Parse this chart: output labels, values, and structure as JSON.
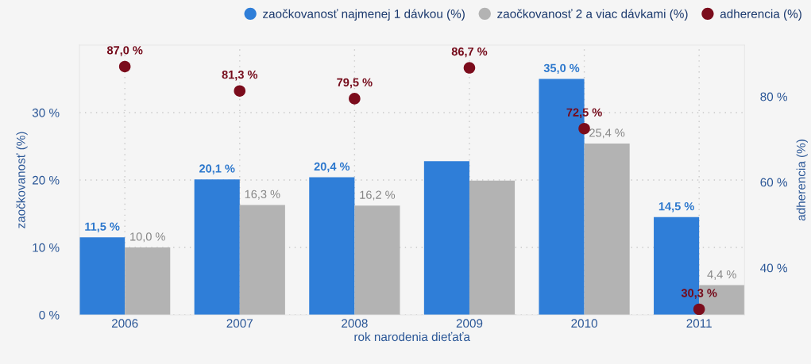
{
  "chart_data": {
    "type": "bar",
    "categories": [
      "2006",
      "2007",
      "2008",
      "2009",
      "2010",
      "2011"
    ],
    "xlabel": "rok narodenia dieťaťa",
    "ylabel": "zaočkovanosť (%)",
    "y2label": "adherencia (%)",
    "ylim": [
      0,
      40
    ],
    "yticks": [
      {
        "value": 0,
        "label": "0 %"
      },
      {
        "value": 10,
        "label": "10 %"
      },
      {
        "value": 20,
        "label": "20 %"
      },
      {
        "value": 30,
        "label": "30 %"
      }
    ],
    "y2lim": [
      29,
      92
    ],
    "y2ticks": [
      {
        "value": 40,
        "label": "40 %"
      },
      {
        "value": 60,
        "label": "60 %"
      },
      {
        "value": 80,
        "label": "80 %"
      }
    ],
    "grid": true,
    "legend": "top right",
    "series": [
      {
        "name": "zaočkovanosť najmenej 1 dávkou (%)",
        "color": "#2f7ed8",
        "values": [
          11.5,
          20.1,
          20.4,
          22.8,
          35.0,
          14.5
        ],
        "value_labels": [
          "11,5 %",
          "20,1 %",
          "20,4 %",
          null,
          "35,0 %",
          "14,5 %"
        ]
      },
      {
        "name": "zaočkovanosť 2 a viac dávkami (%)",
        "color": "#b3b3b3",
        "values": [
          10.0,
          16.3,
          16.2,
          19.9,
          25.4,
          4.4
        ],
        "value_labels": [
          "10,0 %",
          "16,3 %",
          "16,2 %",
          null,
          "25,4 %",
          "4,4 %"
        ]
      },
      {
        "name": "adherencia (%)",
        "type": "scatter",
        "axis": "y2",
        "color": "#7b0c1c",
        "marker": "circle",
        "values": [
          87.0,
          81.3,
          79.5,
          86.7,
          72.5,
          30.3
        ],
        "value_labels": [
          "87,0 %",
          "81,3 %",
          "79,5 %",
          "86,7 %",
          "72,5 %",
          "30,3 %"
        ]
      }
    ]
  }
}
